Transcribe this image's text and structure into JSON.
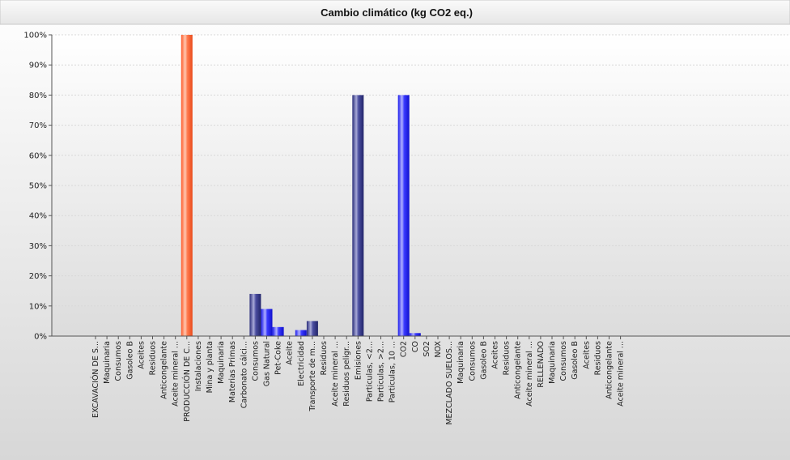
{
  "chart_data": {
    "type": "bar",
    "title": "Cambio climático (kg CO2 eq.)",
    "xlabel": "",
    "ylabel": "",
    "ylim": [
      0,
      100
    ],
    "y_tick_labels": [
      "0%",
      "10%",
      "20%",
      "30%",
      "40%",
      "50%",
      "60%",
      "70%",
      "80%",
      "90%",
      "100%"
    ],
    "grid": true,
    "categories": [
      "EXCAVACIÓN DE S...",
      "Maquinaria",
      "Consumos",
      "Gasoleo B",
      "Aceites",
      "Residuos",
      "Anticongelante",
      "Aceite mineral ...",
      "PRODUCCIÓN DE C...",
      "Instalaciones",
      "Mina y planta",
      "Maquinaria",
      "Materias Primas",
      "Carbonato cálci...",
      "Consumos",
      "Gas Natural",
      "Pet-Coke",
      "Aceite",
      "Electricidad",
      "Transporte de m...",
      "Residuos",
      "Aceite mineral ...",
      "Residuos peligr...",
      "Emisiones",
      "Particulas, <2...",
      "Particulas, >2...",
      "Particulas, 10 ...",
      "CO2",
      "CO",
      "SO2",
      "NOX",
      "MEZCLADO SUELOS...",
      "Maquinaria",
      "Consumos",
      "Gasoleo B",
      "Aceites",
      "Residuos",
      "Anticongelante",
      "Aceite mineral ...",
      "RELLENADO",
      "Maquinaria",
      "Consumos",
      "Gasoleo B",
      "Aceites",
      "Residuos",
      "Anticongelante",
      "Aceite mineral ..."
    ],
    "values": [
      0,
      0,
      0,
      0,
      0,
      0,
      0,
      0,
      100,
      0,
      0,
      0,
      0,
      0,
      14,
      9,
      3,
      0,
      2,
      5,
      0,
      0,
      0,
      80,
      0,
      0,
      0,
      80,
      1,
      0,
      0,
      0,
      0,
      0,
      0,
      0,
      0,
      0,
      0,
      0,
      0,
      0,
      0,
      0,
      0,
      0,
      0
    ],
    "bar_colors": [
      "",
      "",
      "",
      "",
      "",
      "",
      "",
      "",
      "orange",
      "",
      "",
      "",
      "",
      "",
      "navy",
      "blue",
      "blue",
      "",
      "blue",
      "navy",
      "",
      "",
      "",
      "navy",
      "",
      "",
      "",
      "blue",
      "blue",
      "",
      "",
      "",
      "",
      "",
      "",
      "",
      "",
      "",
      "",
      "",
      "",
      "",
      "",
      "",
      "",
      "",
      ""
    ]
  },
  "colors": {
    "orange": "#ff6a3d",
    "navy": "#3a3d8f",
    "blue": "#2222ff",
    "plot_top": "#ffffff",
    "plot_bottom": "#dcdcdc",
    "grid": "#d8d8d8"
  }
}
